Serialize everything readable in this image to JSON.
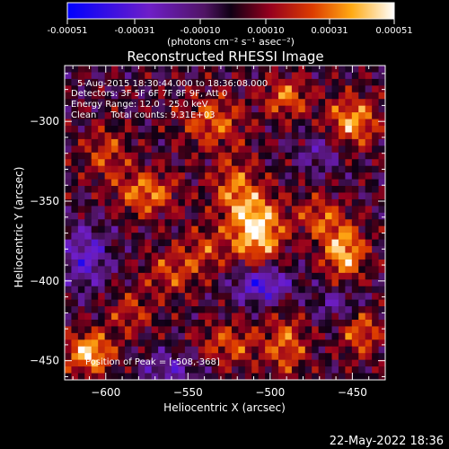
{
  "chart_data": {
    "type": "heatmap",
    "title": "Reconstructed RHESSI Image",
    "xlabel": "Heliocentric X (arcsec)",
    "ylabel": "Heliocentric Y (arcsec)",
    "xlim": [
      -625,
      -430
    ],
    "ylim": [
      -462,
      -265
    ],
    "xticks": [
      -600,
      -550,
      -500,
      -450
    ],
    "yticks": [
      -300,
      -350,
      -400,
      -450
    ],
    "colorbar": {
      "ticks": [
        "-0.00051",
        "-0.00031",
        "-0.00010",
        "0.00010",
        "0.00031",
        "0.00051"
      ],
      "range": [
        -0.00051,
        0.00051
      ],
      "units": "(photons cm⁻² s⁻¹ asec⁻²)"
    },
    "info": [
      "5-Aug-2015 18:30:44.000 to 18:36:08.000",
      "Detectors: 3F 5F 6F 7F 8F 9F, Att 0",
      "Energy Range: 12.0 - 25.0 keV",
      "Clean     Total counts: 9.31E+03"
    ],
    "peak_text": "Position of Peak = [-508,-368]",
    "peak": [
      -508,
      -368
    ],
    "footer_date": "22-May-2022 18:36",
    "sources": [
      {
        "x": -508,
        "y": -368,
        "amp": 1.0,
        "sx": 11,
        "sy": 15
      },
      {
        "x": -522,
        "y": -342,
        "amp": 0.55,
        "sx": 10,
        "sy": 14
      },
      {
        "x": -455,
        "y": -382,
        "amp": 0.85,
        "sx": 9,
        "sy": 12
      },
      {
        "x": -470,
        "y": -360,
        "amp": 0.5,
        "sx": 10,
        "sy": 10
      },
      {
        "x": -450,
        "y": -300,
        "amp": 0.75,
        "sx": 11,
        "sy": 11
      },
      {
        "x": -490,
        "y": -285,
        "amp": 0.6,
        "sx": 10,
        "sy": 9
      },
      {
        "x": -535,
        "y": -300,
        "amp": 0.55,
        "sx": 14,
        "sy": 12
      },
      {
        "x": -575,
        "y": -345,
        "amp": 0.65,
        "sx": 13,
        "sy": 10
      },
      {
        "x": -600,
        "y": -320,
        "amp": 0.45,
        "sx": 10,
        "sy": 12
      },
      {
        "x": -560,
        "y": -395,
        "amp": 0.45,
        "sx": 12,
        "sy": 10
      },
      {
        "x": -610,
        "y": -445,
        "amp": 0.9,
        "sx": 10,
        "sy": 9
      },
      {
        "x": -585,
        "y": -420,
        "amp": 0.4,
        "sx": 10,
        "sy": 10
      },
      {
        "x": -525,
        "y": -440,
        "amp": 0.5,
        "sx": 14,
        "sy": 10
      },
      {
        "x": -490,
        "y": -440,
        "amp": 0.55,
        "sx": 9,
        "sy": 14
      },
      {
        "x": -445,
        "y": -430,
        "amp": 0.6,
        "sx": 9,
        "sy": 12
      },
      {
        "x": -540,
        "y": -380,
        "amp": 0.4,
        "sx": 10,
        "sy": 10
      },
      {
        "x": -505,
        "y": -402,
        "amp": -0.75,
        "sx": 12,
        "sy": 8
      },
      {
        "x": -612,
        "y": -385,
        "amp": -0.55,
        "sx": 10,
        "sy": 14
      },
      {
        "x": -455,
        "y": -415,
        "amp": -0.45,
        "sx": 12,
        "sy": 8
      },
      {
        "x": -560,
        "y": -455,
        "amp": -0.4,
        "sx": 14,
        "sy": 8
      },
      {
        "x": -470,
        "y": -320,
        "amp": -0.35,
        "sx": 10,
        "sy": 9
      }
    ]
  }
}
